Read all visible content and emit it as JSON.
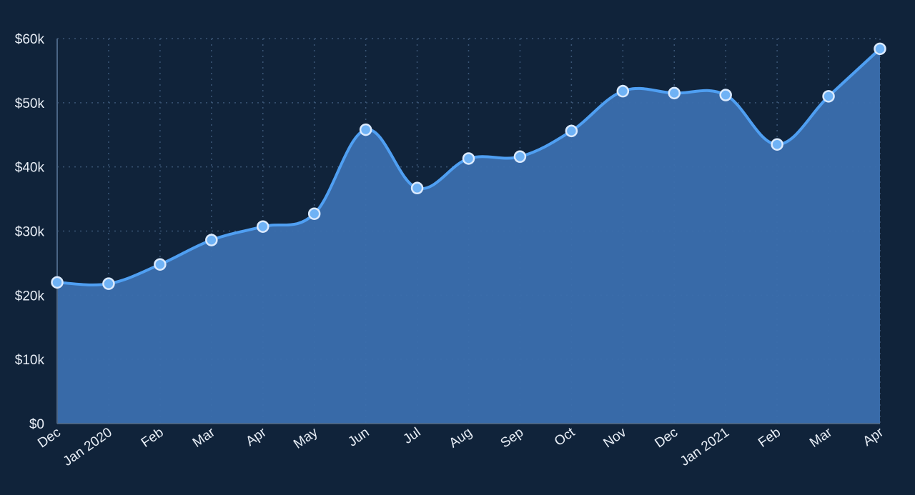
{
  "colors": {
    "background": "#10233a",
    "grid": "#3a5575",
    "area_fill": "#3b6fae",
    "line": "#4f9ff2",
    "point_fill": "#6fb2f5",
    "point_stroke": "#dbeafe",
    "axis": "#4a6585",
    "text": "#e8eef6"
  },
  "chart_data": {
    "type": "area",
    "categories": [
      "Dec",
      "Jan 2020",
      "Feb",
      "Mar",
      "Apr",
      "May",
      "Jun",
      "Jul",
      "Aug",
      "Sep",
      "Oct",
      "Nov",
      "Dec",
      "Jan 2021",
      "Feb",
      "Mar",
      "Apr"
    ],
    "values": [
      22000,
      21800,
      24800,
      28600,
      30700,
      32700,
      45800,
      36700,
      41300,
      41600,
      45600,
      51800,
      51500,
      51200,
      43500,
      51000,
      58400
    ],
    "ylim": [
      0,
      60000
    ],
    "y_ticks": [
      0,
      10000,
      20000,
      30000,
      40000,
      50000,
      60000
    ],
    "y_tick_labels": [
      "$0",
      "$10k",
      "$20k",
      "$30k",
      "$40k",
      "$50k",
      "$60k"
    ],
    "grid": true,
    "smooth": true
  }
}
